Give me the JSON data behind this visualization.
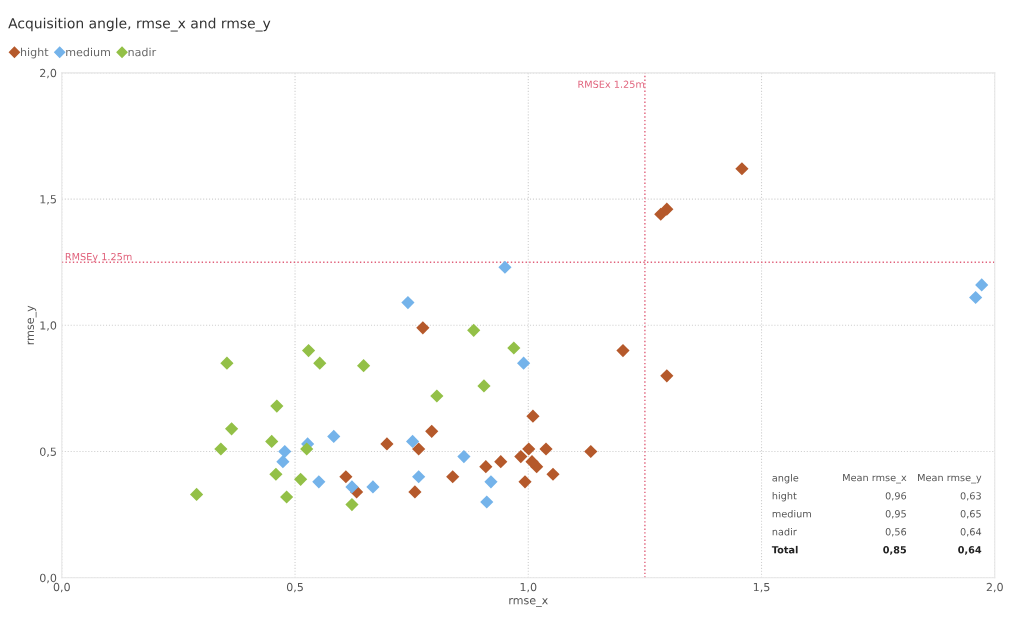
{
  "chart_data": {
    "type": "scatter",
    "title": "Acquisition angle, rmse_x and rmse_y",
    "xlabel": "rmse_x",
    "ylabel": "rmse_y",
    "marker": "diamond",
    "grid": true,
    "legend": "top left",
    "xlim": [
      0,
      2
    ],
    "ylim": [
      0,
      2
    ],
    "xticks": [
      {
        "value": 0,
        "label": "0,0"
      },
      {
        "value": 0.5,
        "label": "0,5"
      },
      {
        "value": 1,
        "label": "1,0"
      },
      {
        "value": 1.5,
        "label": "1,5"
      },
      {
        "value": 2,
        "label": "2,0"
      }
    ],
    "yticks": [
      {
        "value": 0,
        "label": "0,0"
      },
      {
        "value": 0.5,
        "label": "0,5"
      },
      {
        "value": 1,
        "label": "1,0"
      },
      {
        "value": 1.5,
        "label": "1,5"
      },
      {
        "value": 2,
        "label": "2,0"
      }
    ],
    "series": [
      {
        "name": "hight",
        "color": "#b5592b",
        "x": [
          1.458,
          1.284,
          1.297,
          1.203,
          1.297,
          0.774,
          1.01,
          1.134,
          0.697,
          0.793,
          0.765,
          0.757,
          0.609,
          0.632,
          0.838,
          0.909,
          0.941,
          0.984,
          1.001,
          1.038,
          1.018,
          1.008,
          1.053,
          0.993
        ],
        "values": [
          1.62,
          1.44,
          1.46,
          0.9,
          0.8,
          0.99,
          0.64,
          0.5,
          0.53,
          0.58,
          0.51,
          0.34,
          0.4,
          0.34,
          0.4,
          0.44,
          0.46,
          0.48,
          0.51,
          0.51,
          0.44,
          0.46,
          0.41,
          0.38
        ]
      },
      {
        "name": "medium",
        "color": "#74b3ea",
        "x": [
          0.742,
          0.95,
          0.99,
          0.752,
          0.862,
          0.765,
          0.92,
          0.911,
          0.583,
          0.527,
          0.478,
          0.474,
          0.551,
          0.622,
          0.667,
          1.972,
          1.959
        ],
        "values": [
          1.09,
          1.23,
          0.85,
          0.54,
          0.48,
          0.4,
          0.38,
          0.3,
          0.56,
          0.53,
          0.5,
          0.46,
          0.38,
          0.36,
          0.36,
          1.16,
          1.11
        ]
      },
      {
        "name": "nadir",
        "color": "#93c047",
        "x": [
          0.354,
          0.529,
          0.553,
          0.647,
          0.883,
          0.969,
          0.804,
          0.905,
          0.461,
          0.364,
          0.45,
          0.341,
          0.525,
          0.459,
          0.512,
          0.289,
          0.482,
          0.622
        ],
        "values": [
          0.85,
          0.9,
          0.85,
          0.84,
          0.98,
          0.91,
          0.72,
          0.76,
          0.68,
          0.59,
          0.54,
          0.51,
          0.51,
          0.41,
          0.39,
          0.33,
          0.32,
          0.29
        ]
      }
    ],
    "ref_lines": [
      {
        "axis": "x",
        "value": 1.25,
        "label": "RMSEx 1.25m",
        "color": "#e0607a",
        "line_style": "dotted"
      },
      {
        "axis": "y",
        "value": 1.25,
        "label": "RMSEy 1.25m",
        "color": "#e0607a",
        "line_style": "dotted"
      }
    ],
    "annotations": [
      "angle",
      "Mean rmse_x",
      "Mean rmse_y",
      "hight",
      "0,96",
      "0,63",
      "medium",
      "0,95",
      "0,65",
      "nadir",
      "0,56",
      "0,64",
      "Total",
      "0,85",
      "0,64"
    ]
  }
}
